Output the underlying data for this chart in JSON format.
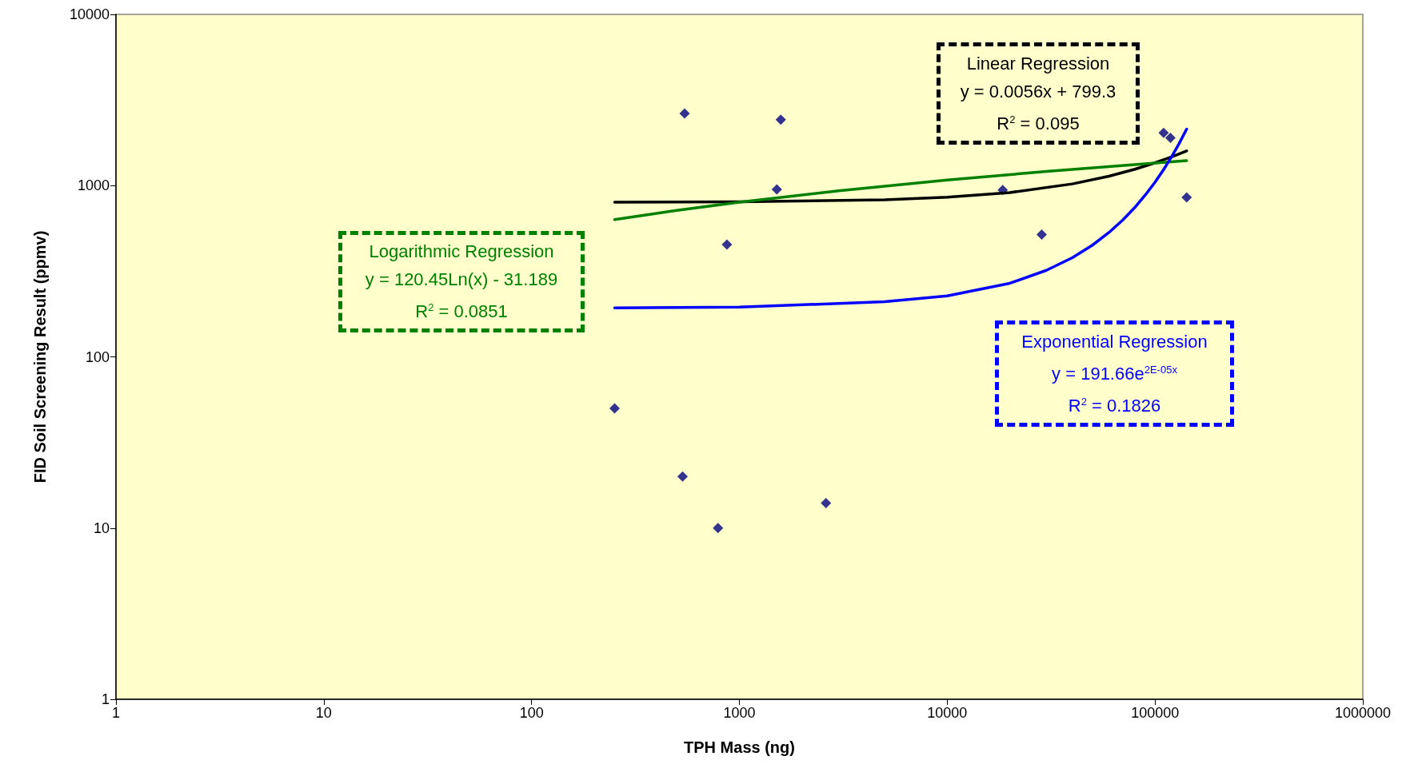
{
  "chart_data": {
    "type": "scatter",
    "xlabel": "TPH Mass (ng)",
    "ylabel": "FID Soil Screening Result (ppmv)",
    "log": "xy",
    "xlim": [
      1,
      1000000
    ],
    "ylim": [
      1,
      10000
    ],
    "xticks": [
      1,
      10,
      100,
      1000,
      10000,
      100000,
      1000000
    ],
    "yticks": [
      1,
      10,
      100,
      1000,
      10000
    ],
    "grid": false,
    "line_style": "solid",
    "series": [
      {
        "marker": "diamond",
        "color": "#000080",
        "x": [
          251,
          545,
          533,
          789,
          871,
          1514,
          1582,
          2610,
          18500,
          28500,
          110000,
          118600,
          142000
        ],
        "values": [
          50,
          2640,
          20,
          10,
          453,
          950,
          2430,
          14,
          942,
          518,
          2030,
          1900,
          853
        ]
      },
      {
        "type": "line",
        "marker": "none",
        "color": "#000000",
        "x": [
          251,
          1000,
          5000,
          10000,
          20000,
          40000,
          60000,
          80000,
          100000,
          120000,
          142000
        ],
        "values": [
          801,
          805,
          827,
          855,
          911,
          1023,
          1135,
          1247,
          1359,
          1471,
          1594
        ]
      },
      {
        "type": "line",
        "marker": "none",
        "color": "#008000",
        "x": [
          251,
          500,
          1000,
          3000,
          10000,
          30000,
          100000,
          142000
        ],
        "values": [
          634,
          717,
          801,
          933,
          1078,
          1210,
          1356,
          1398
        ]
      },
      {
        "type": "line",
        "marker": "none",
        "color": "#0000ff",
        "x": [
          251,
          1000,
          5000,
          10000,
          20000,
          30000,
          40000,
          50000,
          60000,
          70000,
          80000,
          90000,
          100000,
          110000,
          120000,
          130000,
          142000
        ],
        "values": [
          193,
          195,
          210,
          227,
          269,
          320,
          379,
          449,
          532,
          630,
          746,
          884,
          1047,
          1240,
          1470,
          1741,
          2140
        ]
      }
    ],
    "annotations": [
      "Linear Regression\ny = 0.0056x + 799.3\nR$^{2}$ = 0.095",
      "Logarithmic Regression\ny = 120.45Ln(x) - 31.189\nR$^{2}$ = 0.0851",
      "Exponential Regression\ny = 191.66e$^{2E-05x}$\nR$^{2}$ = 0.1826"
    ]
  }
}
